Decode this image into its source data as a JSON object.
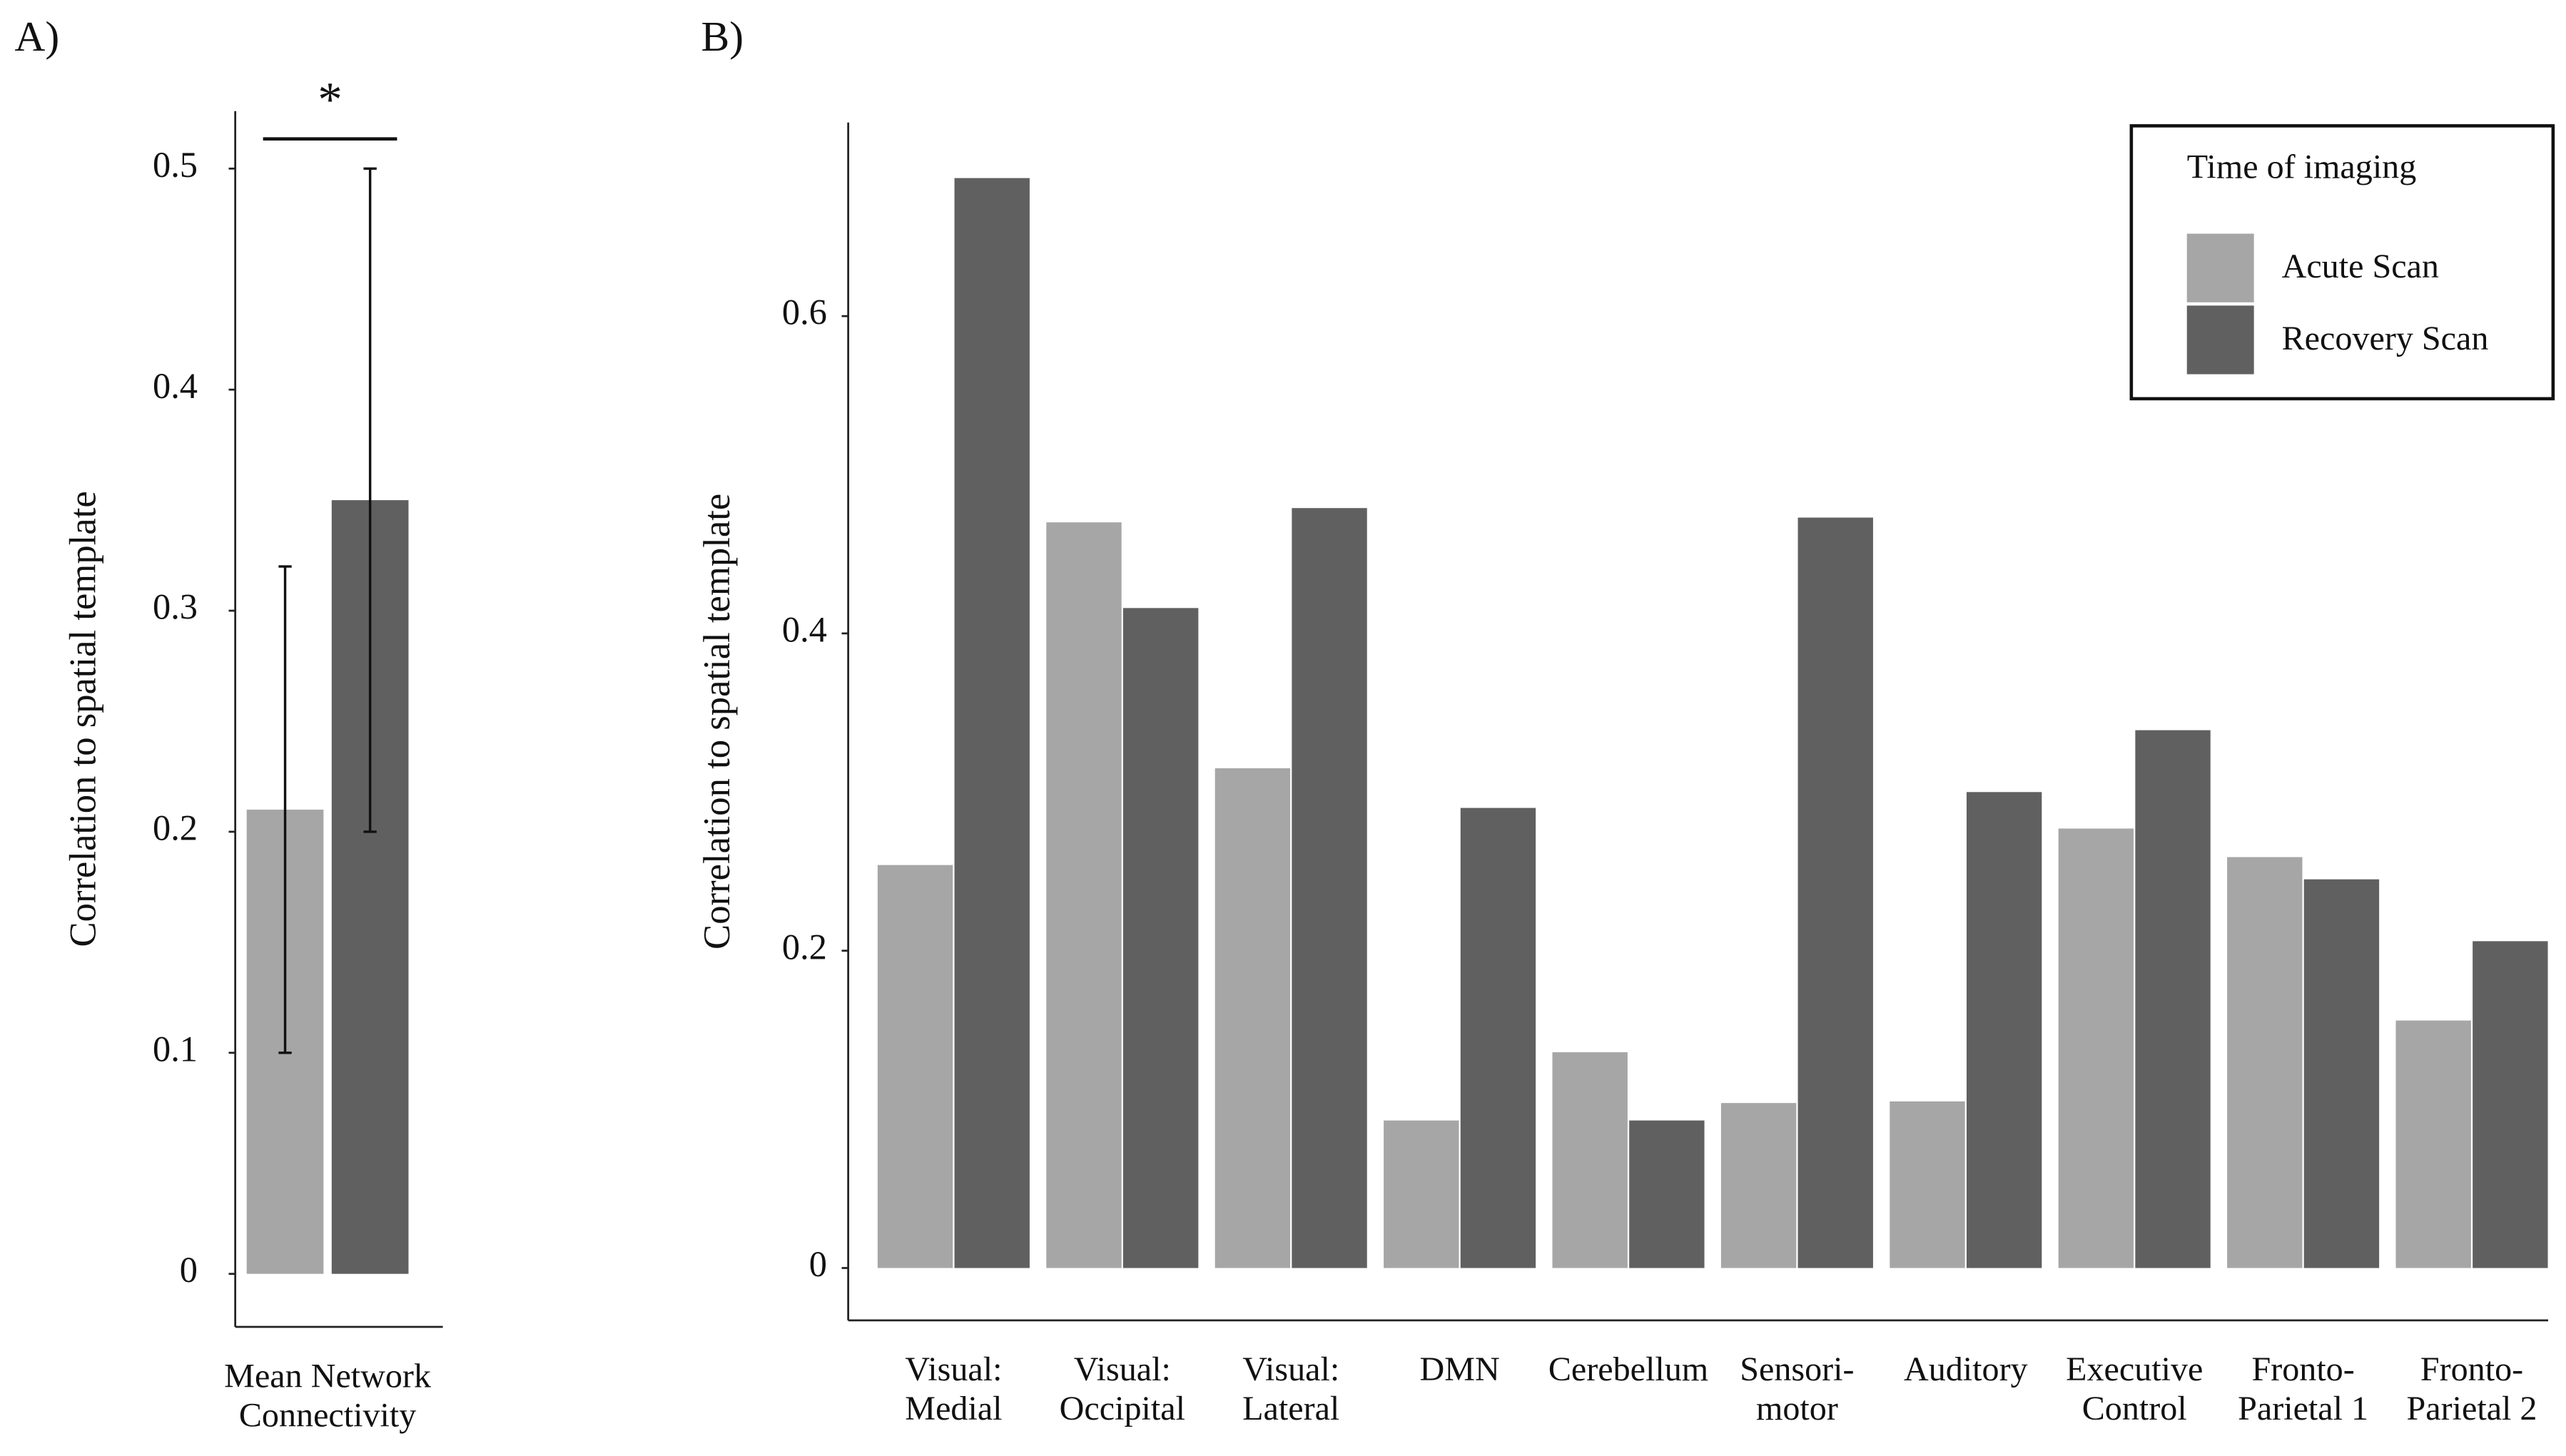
{
  "chart_data": [
    {
      "type": "bar",
      "panel": "A)",
      "ylabel": "Correlation to spatial template",
      "categories": [
        [
          "Mean Network",
          "Connectivity"
        ]
      ],
      "series": [
        {
          "name": "Acute Scan",
          "color": "#a6a6a6",
          "values": [
            0.21
          ],
          "error_low": [
            0.1
          ],
          "error_high": [
            0.32
          ]
        },
        {
          "name": "Recovery Scan",
          "color": "#606060",
          "values": [
            0.35
          ],
          "error_low": [
            0.2
          ],
          "error_high": [
            0.5
          ]
        }
      ],
      "annotation": "*",
      "ylim": [
        -0.024,
        0.526
      ],
      "yticks": [
        0,
        0.1,
        0.2,
        0.3,
        0.4,
        0.5
      ],
      "grid": false
    },
    {
      "type": "bar",
      "panel": "B)",
      "ylabel": "Correlation to spatial template",
      "categories": [
        [
          "Visual:",
          "Medial"
        ],
        [
          "Visual:",
          "Occipital"
        ],
        [
          "Visual:",
          "Lateral"
        ],
        [
          "DMN"
        ],
        [
          "Cerebellum"
        ],
        [
          "Sensori-",
          "motor"
        ],
        [
          "Auditory"
        ],
        [
          "Executive",
          "Control"
        ],
        [
          "Fronto-",
          "Parietal 1"
        ],
        [
          "Fronto-",
          "Parietal 2"
        ]
      ],
      "series": [
        {
          "name": "Acute Scan",
          "color": "#a6a6a6",
          "values": [
            0.254,
            0.47,
            0.315,
            0.093,
            0.136,
            0.104,
            0.105,
            0.277,
            0.259,
            0.156
          ]
        },
        {
          "name": "Recovery Scan",
          "color": "#606060",
          "values": [
            0.687,
            0.416,
            0.479,
            0.29,
            0.093,
            0.473,
            0.3,
            0.339,
            0.245,
            0.206
          ]
        }
      ],
      "legend_title": "Time of imaging",
      "legend": "top-right",
      "ylim": [
        -0.033,
        0.722
      ],
      "yticks": [
        0,
        0.2,
        0.4,
        0.6
      ],
      "grid": false
    }
  ]
}
